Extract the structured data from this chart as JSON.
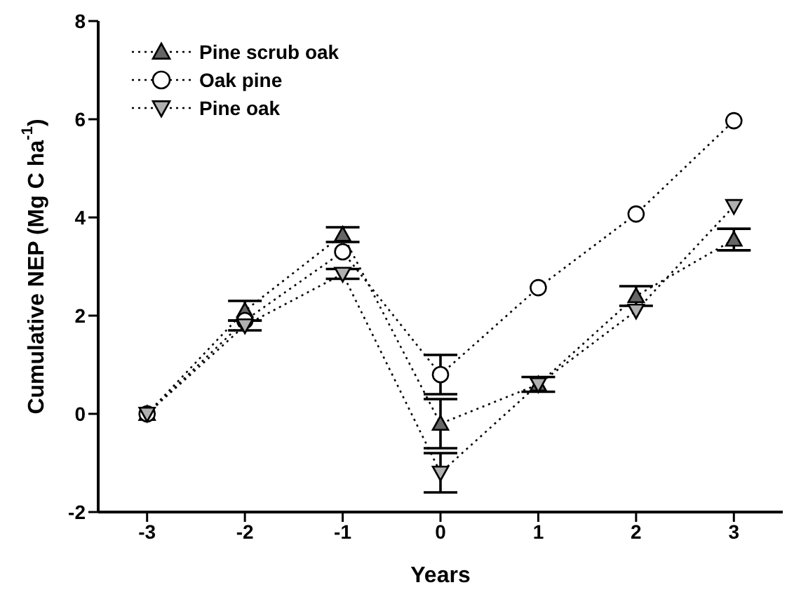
{
  "chart_data": {
    "type": "line",
    "xlabel": "Years",
    "ylabel": "Cumulative NEP (Mg C ha$^{-1}$)",
    "x": [
      -3,
      -2,
      -1,
      0,
      1,
      2,
      3
    ],
    "xlim": [
      -3.5,
      3.5
    ],
    "xticks": [
      -3,
      -2,
      -1,
      0,
      1,
      2,
      3
    ],
    "ylim": [
      -2,
      8
    ],
    "yticks": [
      -2,
      0,
      2,
      4,
      6,
      8
    ],
    "grid": false,
    "legend": "top left",
    "line_style": "dotted",
    "series": [
      {
        "name": "Pine scrub oak",
        "color": "#666666",
        "marker": "triangle",
        "values": [
          0,
          2.1,
          3.65,
          -0.2,
          0.6,
          2.4,
          3.55
        ],
        "errors": [
          null,
          0.2,
          0.15,
          0.5,
          0.15,
          0.2,
          0.22
        ]
      },
      {
        "name": "Oak pine",
        "color": "#ffffff",
        "marker": "circle",
        "values": [
          0,
          1.9,
          3.3,
          0.8,
          2.57,
          4.07,
          5.97
        ],
        "errors": [
          null,
          null,
          null,
          0.4,
          null,
          null,
          null
        ]
      },
      {
        "name": "Pine oak",
        "color": "#b0b0b0",
        "marker": "triangle-down",
        "values": [
          0,
          1.8,
          2.85,
          -1.2,
          0.6,
          2.1,
          4.23
        ],
        "errors": [
          null,
          0.1,
          0.1,
          0.4,
          null,
          null,
          null
        ]
      }
    ]
  }
}
